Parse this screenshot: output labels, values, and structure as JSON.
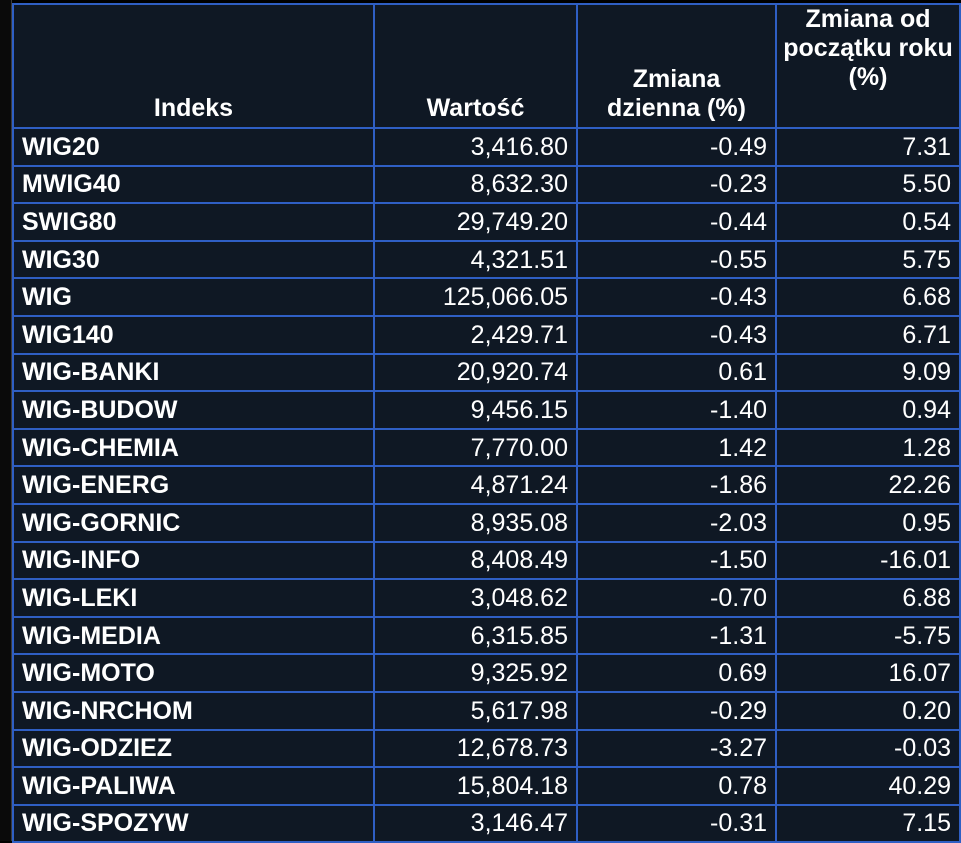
{
  "colors": {
    "positive": "#7ee27a",
    "negative": "#ff2a2a",
    "grid": "#2f5fc4",
    "background": "#0f1824"
  },
  "headers": {
    "name": "Indeks",
    "value": "Wartość",
    "daily": "Zmiana dzienna (%)",
    "ytd": "Zmiana od początku roku (%)"
  },
  "rows": [
    {
      "name": "WIG20",
      "value": "3,416.80",
      "daily": "-0.49",
      "ytd": "7.31"
    },
    {
      "name": "MWIG40",
      "value": "8,632.30",
      "daily": "-0.23",
      "ytd": "5.50"
    },
    {
      "name": "SWIG80",
      "value": "29,749.20",
      "daily": "-0.44",
      "ytd": "0.54"
    },
    {
      "name": "WIG30",
      "value": "4,321.51",
      "daily": "-0.55",
      "ytd": "5.75"
    },
    {
      "name": "WIG",
      "value": "125,066.05",
      "daily": "-0.43",
      "ytd": "6.68"
    },
    {
      "name": "WIG140",
      "value": "2,429.71",
      "daily": "-0.43",
      "ytd": "6.71"
    },
    {
      "name": "WIG-BANKI",
      "value": "20,920.74",
      "daily": "0.61",
      "ytd": "9.09"
    },
    {
      "name": "WIG-BUDOW",
      "value": "9,456.15",
      "daily": "-1.40",
      "ytd": "0.94"
    },
    {
      "name": "WIG-CHEMIA",
      "value": "7,770.00",
      "daily": "1.42",
      "ytd": "1.28"
    },
    {
      "name": "WIG-ENERG",
      "value": "4,871.24",
      "daily": "-1.86",
      "ytd": "22.26"
    },
    {
      "name": "WIG-GORNIC",
      "value": "8,935.08",
      "daily": "-2.03",
      "ytd": "0.95"
    },
    {
      "name": "WIG-INFO",
      "value": "8,408.49",
      "daily": "-1.50",
      "ytd": "-16.01"
    },
    {
      "name": "WIG-LEKI",
      "value": "3,048.62",
      "daily": "-0.70",
      "ytd": "6.88"
    },
    {
      "name": "WIG-MEDIA",
      "value": "6,315.85",
      "daily": "-1.31",
      "ytd": "-5.75"
    },
    {
      "name": "WIG-MOTO",
      "value": "9,325.92",
      "daily": "0.69",
      "ytd": "16.07"
    },
    {
      "name": "WIG-NRCHOM",
      "value": "5,617.98",
      "daily": "-0.29",
      "ytd": "0.20"
    },
    {
      "name": "WIG-ODZIEZ",
      "value": "12,678.73",
      "daily": "-3.27",
      "ytd": "-0.03"
    },
    {
      "name": "WIG-PALIWA",
      "value": "15,804.18",
      "daily": "0.78",
      "ytd": "40.29"
    },
    {
      "name": "WIG-SPOZYW",
      "value": "3,146.47",
      "daily": "-0.31",
      "ytd": "7.15"
    }
  ]
}
